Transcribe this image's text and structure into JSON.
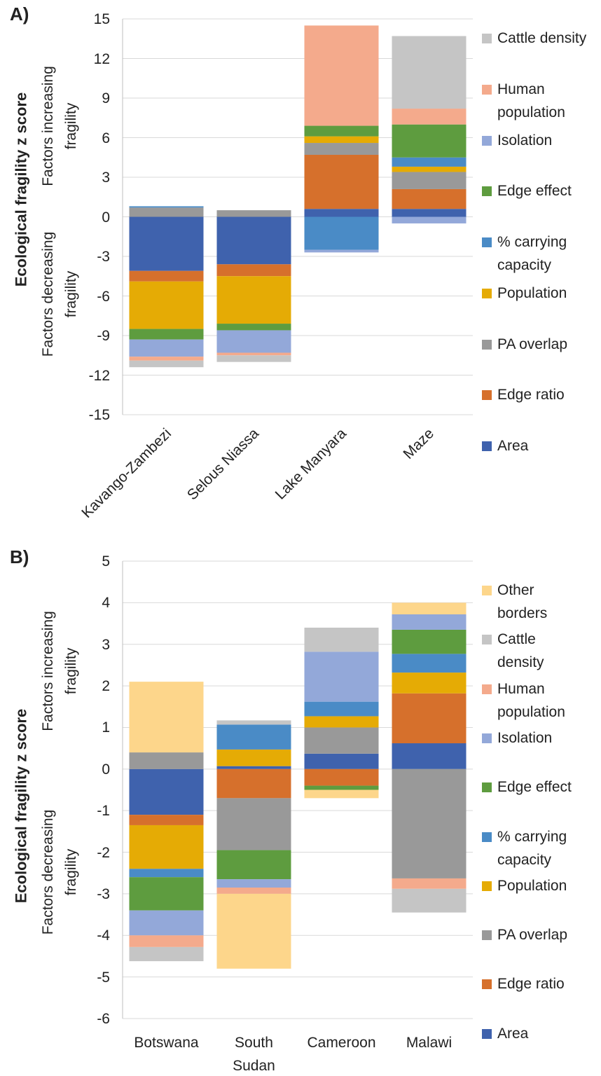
{
  "chart_data": [
    {
      "type": "bar",
      "stacked": true,
      "title": "A)",
      "ylabel": "Ecological fragility z score",
      "annotations": [
        "Factors increasing fragility",
        "Factors decreasing fragility"
      ],
      "categories": [
        "Kavango-Zambezi",
        "Selous Niassa",
        "Lake Manyara",
        "Maze"
      ],
      "ylim": [
        -15,
        15
      ],
      "yticks": [
        15,
        12,
        9,
        6,
        3,
        0,
        -3,
        -6,
        -9,
        -12,
        -15
      ],
      "grid": true,
      "series": [
        {
          "name": "Area",
          "color": "#3f62ad",
          "values": [
            -4.1,
            -3.6,
            0.6,
            0.6
          ]
        },
        {
          "name": "Edge ratio",
          "color": "#d6702c",
          "values": [
            -0.8,
            -0.9,
            4.1,
            1.5
          ]
        },
        {
          "name": "PA overlap",
          "color": "#999999",
          "values": [
            0.7,
            0.5,
            0.9,
            1.3
          ]
        },
        {
          "name": "Population",
          "color": "#e5ab05",
          "values": [
            -3.6,
            -3.6,
            0.5,
            0.4
          ]
        },
        {
          "name": "% carrying capacity",
          "color": "#4a8bc6",
          "values": [
            0.1,
            0,
            -2.5,
            0.7
          ]
        },
        {
          "name": "Edge effect",
          "color": "#5e9c3f",
          "values": [
            -0.8,
            -0.5,
            0.8,
            2.5
          ]
        },
        {
          "name": "Isolation",
          "color": "#93a8d9",
          "values": [
            -1.3,
            -1.7,
            -0.2,
            -0.5
          ]
        },
        {
          "name": "Human population",
          "color": "#f4aa8c",
          "values": [
            -0.3,
            -0.2,
            7.6,
            1.2
          ]
        },
        {
          "name": "Cattle density",
          "color": "#c5c5c5",
          "values": [
            -0.5,
            -0.5,
            0,
            5.5
          ]
        }
      ]
    },
    {
      "type": "bar",
      "stacked": true,
      "title": "B)",
      "ylabel": "Ecological fragility z score",
      "annotations": [
        "Factors increasing fragility",
        "Factors decreasing fragility"
      ],
      "categories": [
        "Botswana",
        "South Sudan",
        "Cameroon",
        "Malawi"
      ],
      "ylim": [
        -6,
        5
      ],
      "yticks": [
        5,
        4,
        3,
        2,
        1,
        0,
        -1,
        -2,
        -3,
        -4,
        -5,
        -6
      ],
      "grid": true,
      "series": [
        {
          "name": "Area",
          "color": "#3f62ad",
          "values": [
            -1.1,
            0.07,
            0.37,
            0.62
          ]
        },
        {
          "name": "Edge ratio",
          "color": "#d6702c",
          "values": [
            -0.25,
            -0.7,
            -0.4,
            1.2
          ]
        },
        {
          "name": "PA overlap",
          "color": "#999999",
          "values": [
            0.4,
            -1.25,
            0.63,
            -2.63
          ]
        },
        {
          "name": "Population",
          "color": "#e5ab05",
          "values": [
            -1.05,
            0.4,
            0.27,
            0.5
          ]
        },
        {
          "name": "% carrying capacity",
          "color": "#4a8bc6",
          "values": [
            -0.2,
            0.6,
            0.35,
            0.45
          ]
        },
        {
          "name": "Edge effect",
          "color": "#5e9c3f",
          "values": [
            -0.8,
            -0.7,
            -0.1,
            0.58
          ]
        },
        {
          "name": "Isolation",
          "color": "#93a8d9",
          "values": [
            -0.6,
            -0.2,
            1.2,
            0.37
          ]
        },
        {
          "name": "Human population",
          "color": "#f4aa8c",
          "values": [
            -0.28,
            -0.15,
            0,
            -0.25
          ]
        },
        {
          "name": "Cattle density",
          "color": "#c5c5c5",
          "values": [
            -0.34,
            0.1,
            0.58,
            -0.57
          ]
        },
        {
          "name": "Other borders",
          "color": "#fdd68b",
          "values": [
            1.7,
            -1.8,
            -0.2,
            0.28
          ]
        }
      ]
    }
  ]
}
